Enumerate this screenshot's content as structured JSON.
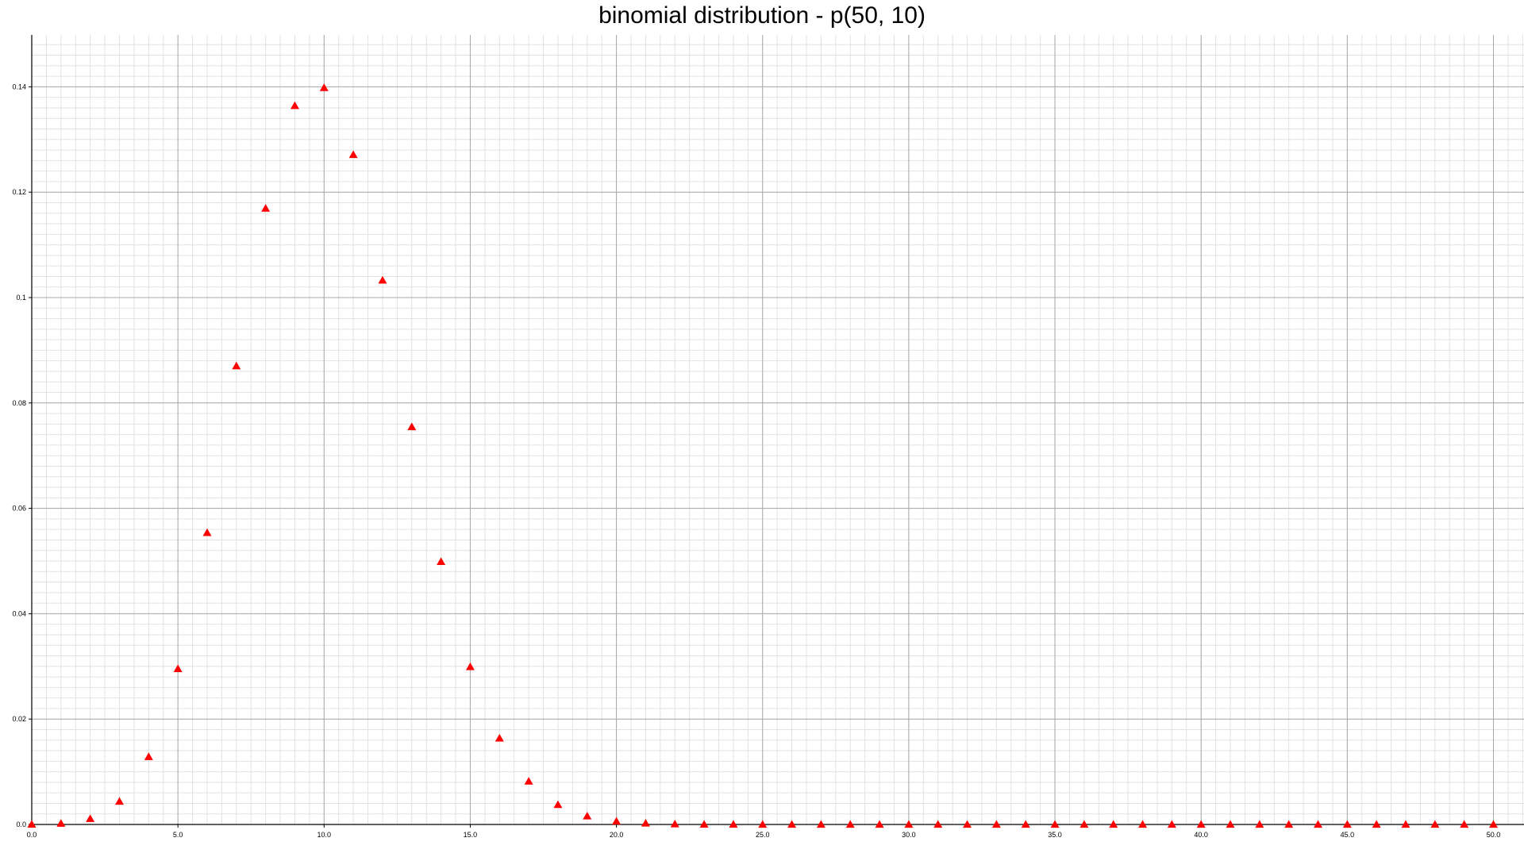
{
  "chart_data": {
    "type": "scatter",
    "title": "binomial distribution - p(50, 10)",
    "xlabel": "",
    "ylabel": "",
    "xlim": [
      0,
      51
    ],
    "ylim": [
      0,
      0.15
    ],
    "x_ticks": [
      0,
      5,
      10,
      15,
      20,
      25,
      30,
      35,
      40,
      45,
      50
    ],
    "x_tick_labels": [
      "0.0",
      "5.0",
      "10.0",
      "15.0",
      "20.0",
      "25.0",
      "30.0",
      "35.0",
      "40.0",
      "45.0",
      "50.0"
    ],
    "y_ticks": [
      0,
      0.02,
      0.04,
      0.06,
      0.08,
      0.1,
      0.12,
      0.14
    ],
    "y_tick_labels": [
      "0.0",
      "0.02",
      "0.04",
      "0.06",
      "0.08",
      "0.1",
      "0.12",
      "0.14"
    ],
    "grid": true,
    "marker": "triangle",
    "colors": {
      "marker": "#ff0000",
      "major_grid": "#a8a8a8",
      "minor_grid": "#e2e2e2",
      "axis": "#000000"
    },
    "x": [
      0,
      1,
      2,
      3,
      4,
      5,
      6,
      7,
      8,
      9,
      10,
      11,
      12,
      13,
      14,
      15,
      16,
      17,
      18,
      19,
      20,
      21,
      22,
      23,
      24,
      25,
      26,
      27,
      28,
      29,
      30,
      31,
      32,
      33,
      34,
      35,
      36,
      37,
      38,
      39,
      40,
      41,
      42,
      43,
      44,
      45,
      46,
      47,
      48,
      49,
      50
    ],
    "values": [
      1e-05,
      0.00018,
      0.00109,
      0.00437,
      0.01284,
      0.02953,
      0.05537,
      0.08701,
      0.11692,
      0.13641,
      0.13982,
      0.12711,
      0.10328,
      0.07546,
      0.04986,
      0.02992,
      0.01636,
      0.00818,
      0.00375,
      0.00158,
      0.00061,
      0.00022,
      7e-05,
      2e-05,
      1e-05,
      0,
      0,
      0,
      0,
      0,
      0,
      0,
      0,
      0,
      0,
      0,
      0,
      0,
      0,
      0,
      0,
      0,
      0,
      0,
      0,
      0,
      0,
      0,
      0,
      0,
      0
    ]
  }
}
